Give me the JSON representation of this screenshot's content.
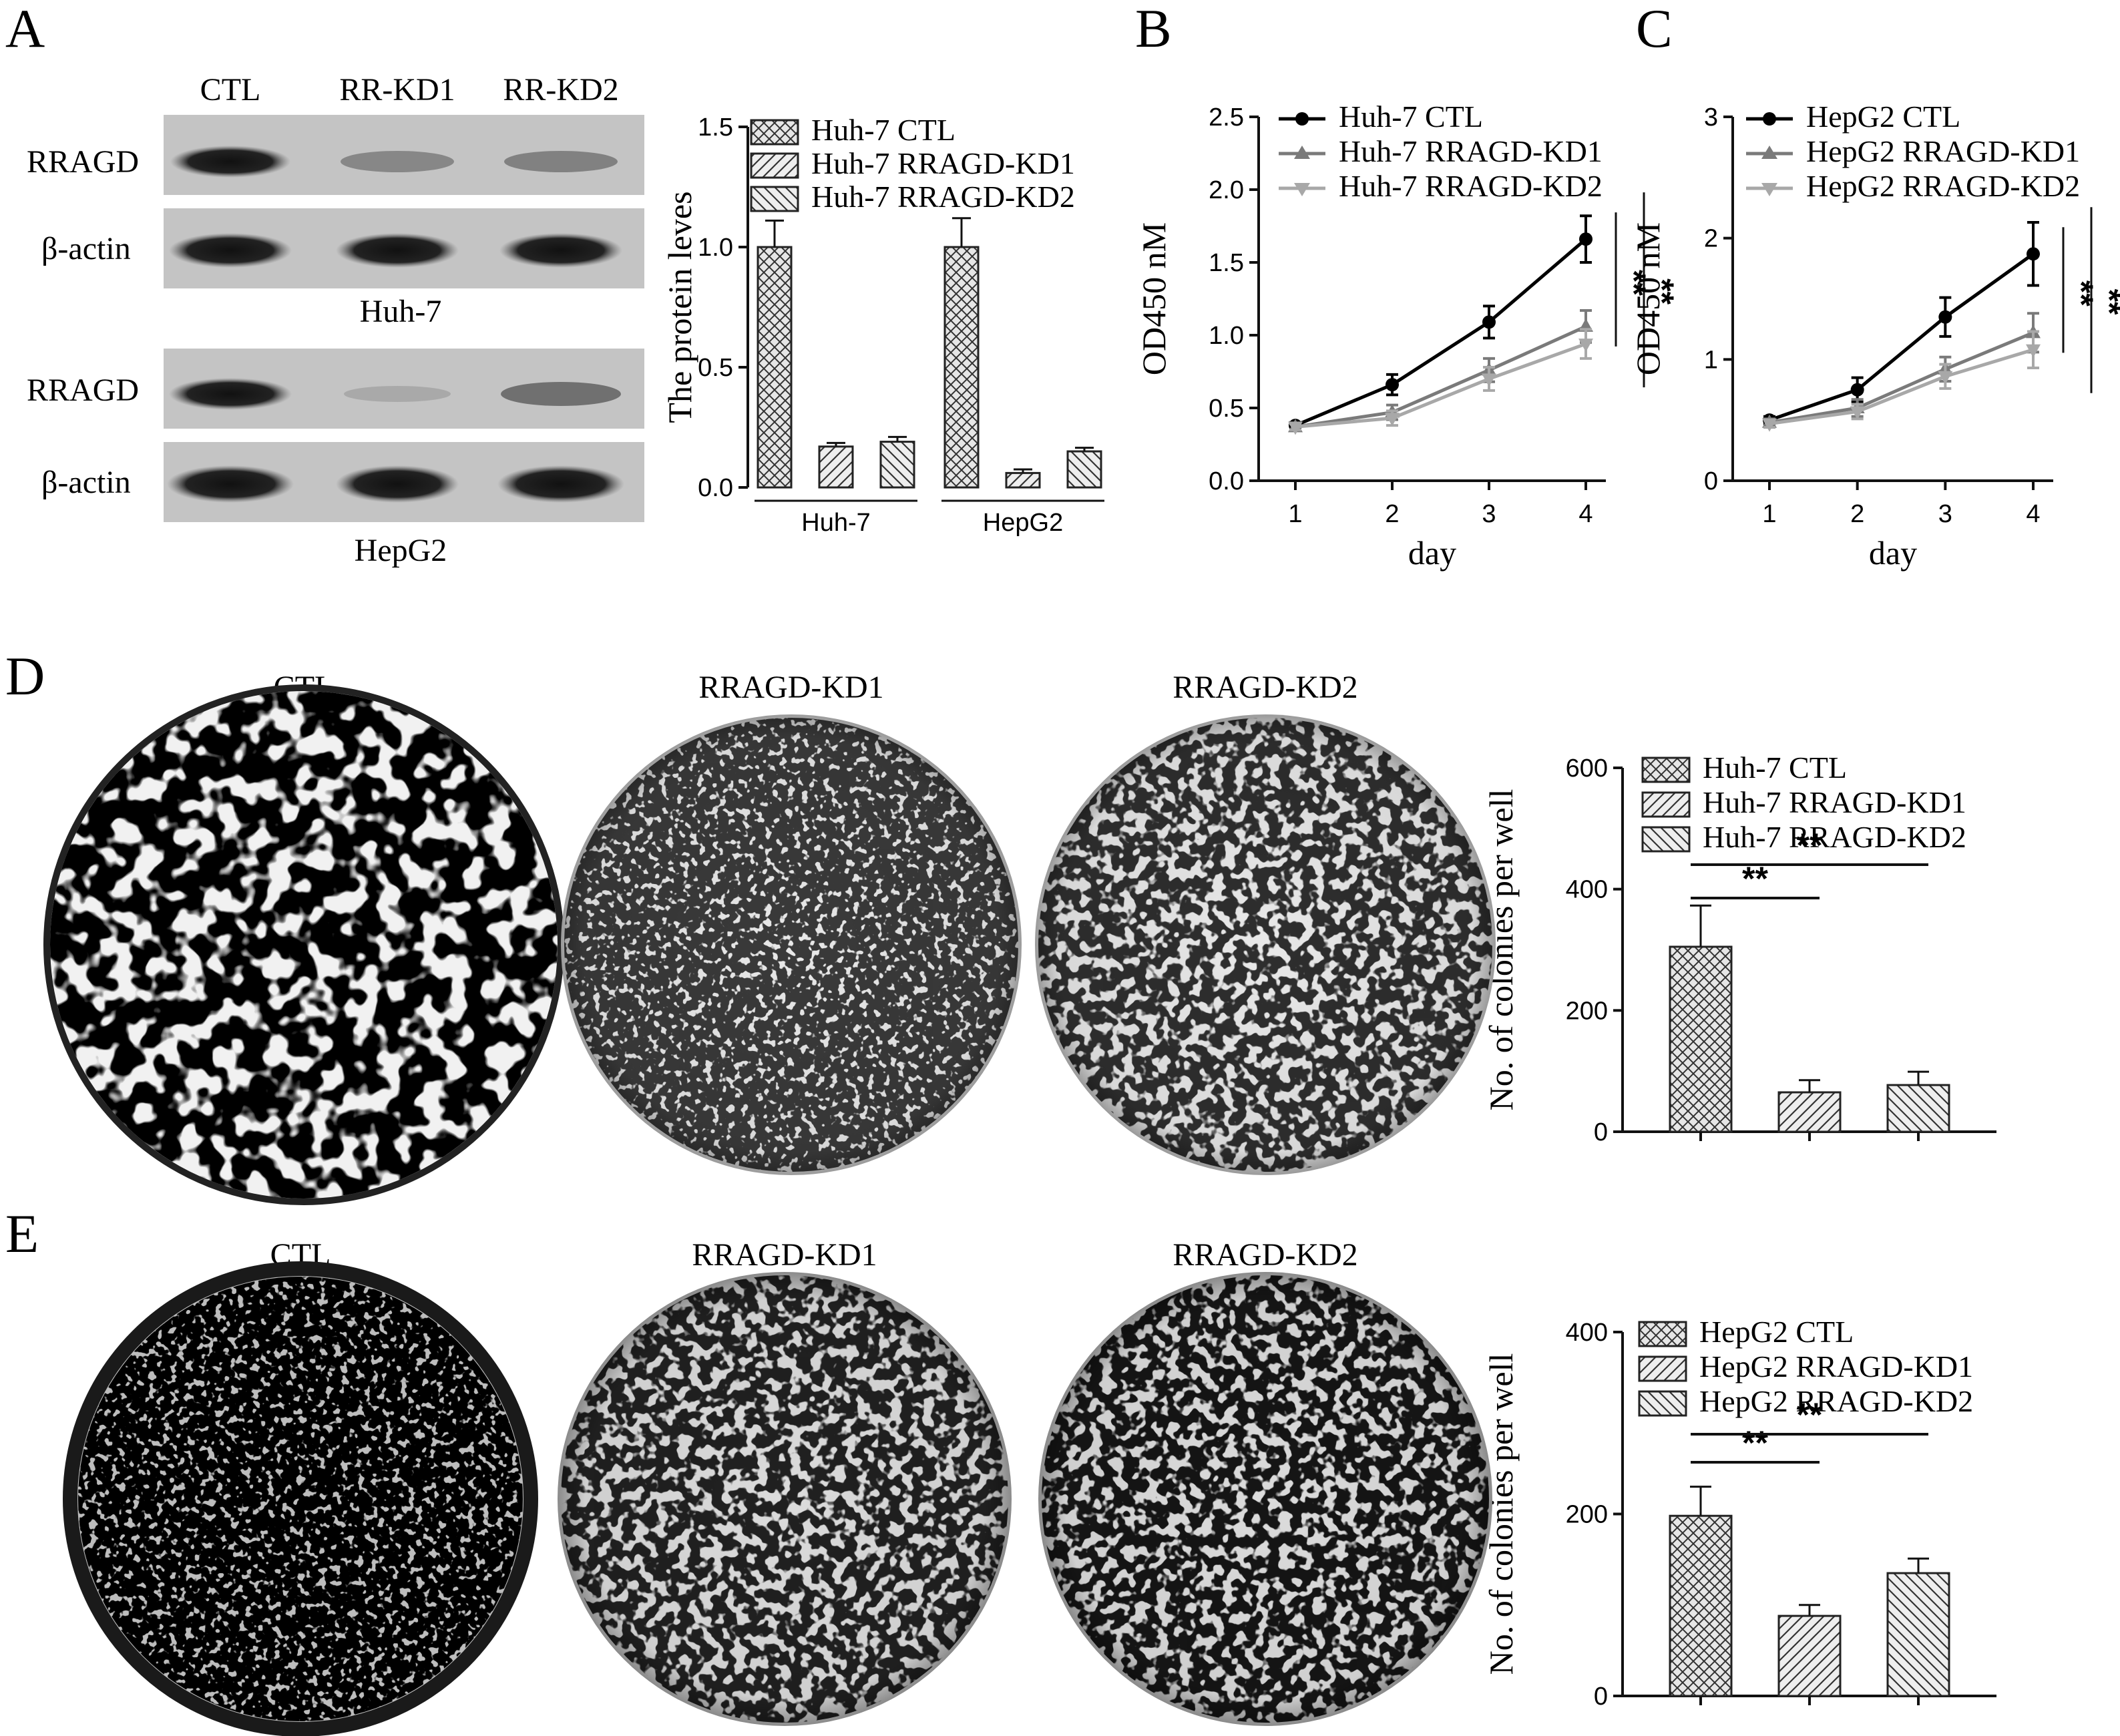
{
  "panels": {
    "A": {
      "label": "A",
      "blot_lanes": [
        "CTL",
        "RR-KD1",
        "RR-KD2"
      ],
      "blot_rows": [
        "RRAGD",
        "β-actin",
        "RRAGD",
        "β-actin"
      ],
      "cell_lines": [
        "Huh-7",
        "HepG2"
      ]
    },
    "B": {
      "label": "B"
    },
    "C": {
      "label": "C"
    },
    "D": {
      "label": "D",
      "dish_titles": [
        "CTL",
        "RRAGD-KD1",
        "RRAGD-KD2"
      ]
    },
    "E": {
      "label": "E",
      "dish_titles": [
        "CTL",
        "RRAGD-KD1",
        "RRAGD-KD2"
      ]
    }
  },
  "colors": {
    "ctl": "#000000",
    "kd1": "#7a7a7a",
    "kd2": "#a8a8a8",
    "bar_fill": "#e6e6e6",
    "bar_stroke": "#222222"
  },
  "chart_data": [
    {
      "id": "A",
      "type": "bar",
      "ylabel": "The protein leves",
      "ylim": [
        0,
        1.5
      ],
      "yticks": [
        "0.0",
        "0.5",
        "1.0",
        "1.5"
      ],
      "groups": [
        "Huh-7",
        "HepG2"
      ],
      "series": [
        {
          "name": "Huh-7  CTL",
          "values": [
            1.0,
            1.0
          ],
          "errors": [
            0.11,
            0.12
          ]
        },
        {
          "name": "Huh-7  RRAGD-KD1",
          "values": [
            0.17,
            0.06
          ],
          "errors": [
            0.015,
            0.015
          ]
        },
        {
          "name": "Huh-7  RRAGD-KD2",
          "values": [
            0.19,
            0.15
          ],
          "errors": [
            0.02,
            0.015
          ]
        }
      ]
    },
    {
      "id": "B",
      "type": "line",
      "xlabel": "day",
      "ylabel": "OD450 nM",
      "x": [
        1,
        2,
        3,
        4
      ],
      "xticks": [
        "1",
        "2",
        "3",
        "4"
      ],
      "ylim": [
        0,
        2.5
      ],
      "yticks": [
        "0.0",
        "0.5",
        "1.0",
        "1.5",
        "2.0",
        "2.5"
      ],
      "significance": [
        "**",
        "**"
      ],
      "series": [
        {
          "name": "Huh-7  CTL",
          "values": [
            0.38,
            0.66,
            1.09,
            1.66
          ],
          "errors": [
            0.02,
            0.07,
            0.11,
            0.16
          ]
        },
        {
          "name": "Huh-7  RRAGD-KD1",
          "values": [
            0.37,
            0.47,
            0.76,
            1.06
          ],
          "errors": [
            0.02,
            0.05,
            0.08,
            0.11
          ]
        },
        {
          "name": "Huh-7  RRAGD-KD2",
          "values": [
            0.37,
            0.43,
            0.7,
            0.94
          ],
          "errors": [
            0.02,
            0.05,
            0.08,
            0.1
          ]
        }
      ]
    },
    {
      "id": "C",
      "type": "line",
      "xlabel": "day",
      "ylabel": "OD450 nM",
      "x": [
        1,
        2,
        3,
        4
      ],
      "xticks": [
        "1",
        "2",
        "3",
        "4"
      ],
      "ylim": [
        0,
        3
      ],
      "yticks": [
        "0",
        "1",
        "2",
        "3"
      ],
      "significance": [
        "**",
        "**"
      ],
      "series": [
        {
          "name": "HepG2  CTL",
          "values": [
            0.5,
            0.75,
            1.35,
            1.87
          ],
          "errors": [
            0.03,
            0.1,
            0.16,
            0.26
          ]
        },
        {
          "name": "HepG2  RRAGD-KD1",
          "values": [
            0.48,
            0.6,
            0.92,
            1.22
          ],
          "errors": [
            0.03,
            0.07,
            0.1,
            0.16
          ]
        },
        {
          "name": "HepG2  RRAGD-KD2",
          "values": [
            0.47,
            0.57,
            0.86,
            1.08
          ],
          "errors": [
            0.03,
            0.06,
            0.1,
            0.15
          ]
        }
      ]
    },
    {
      "id": "D",
      "type": "bar",
      "ylabel": "No. of colonies per well",
      "ylim": [
        0,
        600
      ],
      "yticks": [
        "0",
        "200",
        "400",
        "600"
      ],
      "categories": [
        "Huh-7  CTL",
        "Huh-7  RRAGD-KD1",
        "Huh-7  RRAGD-KD2"
      ],
      "values": [
        305,
        65,
        77
      ],
      "errors": [
        68,
        20,
        22
      ],
      "significance": [
        "**",
        "**"
      ]
    },
    {
      "id": "E",
      "type": "bar",
      "ylabel": "No. of colonies per well",
      "ylim": [
        0,
        400
      ],
      "yticks": [
        "0",
        "200",
        "400"
      ],
      "categories": [
        "HepG2  CTL",
        "HepG2  RRAGD-KD1",
        "HepG2  RRAGD-KD2"
      ],
      "values": [
        198,
        88,
        135
      ],
      "errors": [
        32,
        12,
        16
      ],
      "significance": [
        "**",
        "**"
      ]
    }
  ]
}
